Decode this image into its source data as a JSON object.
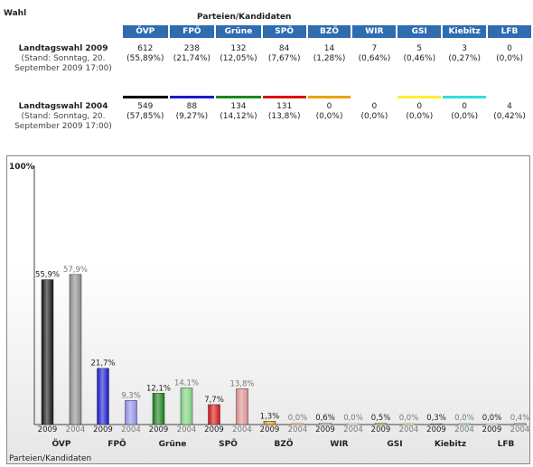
{
  "header": {
    "wahl": "Wahl",
    "parteien": "Parteien/Kandidaten"
  },
  "parties": [
    {
      "name": "ÖVP",
      "color": "#000000"
    },
    {
      "name": "FPÖ",
      "color": "#1a1acc"
    },
    {
      "name": "Grüne",
      "color": "#1a8a1a"
    },
    {
      "name": "SPÖ",
      "color": "#dd1111"
    },
    {
      "name": "BZÖ",
      "color": "#f0a000"
    },
    {
      "name": "WIR",
      "color": "#ffffff"
    },
    {
      "name": "GSI",
      "color": "#ffee33"
    },
    {
      "name": "Kiebitz",
      "color": "#33dddd"
    },
    {
      "name": "LFB",
      "color": "#ffffff"
    }
  ],
  "elections": [
    {
      "name": "Landtagswahl 2009",
      "stand": "(Stand: Sonntag, 20. September 2009 17:00)",
      "votes": [
        "612",
        "238",
        "132",
        "84",
        "14",
        "7",
        "5",
        "3",
        "0"
      ],
      "percents": [
        "(55,89%)",
        "(21,74%)",
        "(12,05%)",
        "(7,67%)",
        "(1,28%)",
        "(0,64%)",
        "(0,46%)",
        "(0,27%)",
        "(0,0%)"
      ]
    },
    {
      "name": "Landtagswahl 2004",
      "stand": "(Stand: Sonntag, 20. September 2009 17:00)",
      "votes": [
        "549",
        "88",
        "134",
        "131",
        "0",
        "0",
        "0",
        "0",
        "4"
      ],
      "percents": [
        "(57,85%)",
        "(9,27%)",
        "(14,12%)",
        "(13,8%)",
        "(0,0%)",
        "(0,0%)",
        "(0,0%)",
        "(0,0%)",
        "(0,42%)"
      ]
    }
  ],
  "chart_data": {
    "type": "bar",
    "ymax_label": "100%",
    "xlabel": "Parteien/Kandidaten",
    "ylim": [
      0,
      100
    ],
    "categories": [
      "ÖVP",
      "FPÖ",
      "Grüne",
      "SPÖ",
      "BZÖ",
      "WIR",
      "GSI",
      "Kiebitz",
      "LFB"
    ],
    "series": [
      {
        "name": "2009",
        "values": [
          55.9,
          21.7,
          12.1,
          7.7,
          1.3,
          0.6,
          0.5,
          0.3,
          0.0
        ],
        "labels": [
          "55,9%",
          "21,7%",
          "12,1%",
          "7,7%",
          "1,3%",
          "0,6%",
          "0,5%",
          "0,3%",
          "0,0%"
        ]
      },
      {
        "name": "2004",
        "values": [
          57.9,
          9.3,
          14.1,
          13.8,
          0.0,
          0.0,
          0.0,
          0.0,
          0.4
        ],
        "labels": [
          "57,9%",
          "9,3%",
          "14,1%",
          "13,8%",
          "0,0%",
          "0,0%",
          "0,0%",
          "0,0%",
          "0,4%"
        ]
      }
    ],
    "colors_2009": [
      "#111111",
      "#1515c8",
      "#157a15",
      "#cc1010",
      "#e8a000",
      "#ffffff",
      "#ffee33",
      "#33cccc",
      "#ffffff"
    ],
    "colors_2004": [
      "#888888",
      "#8a8ae8",
      "#7acc7a",
      "#d88a8a",
      "#f5cf80",
      "#ffffff",
      "#fff8a0",
      "#a0eeee",
      "#ffffff"
    ]
  }
}
